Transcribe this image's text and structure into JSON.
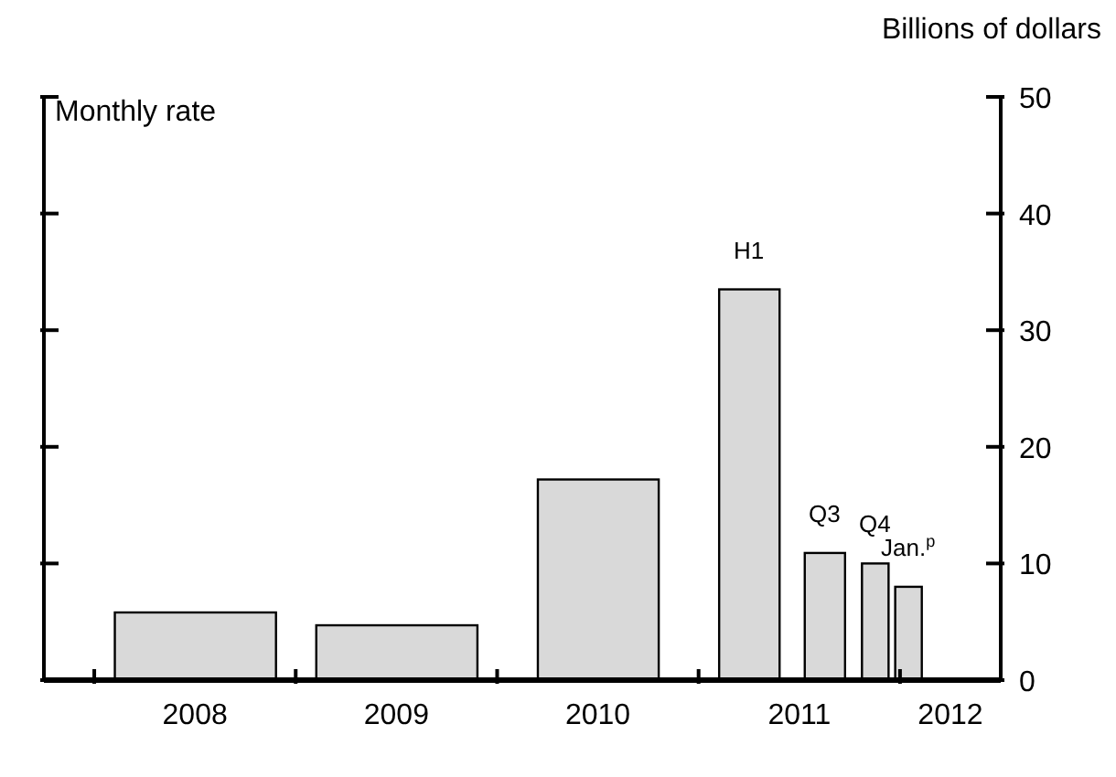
{
  "chart_data": {
    "type": "bar",
    "ylabel": "Billions of dollars",
    "x": [
      2008.5,
      2009.5,
      2010.5,
      2011.25,
      2011.625,
      2011.875,
      2012.04
    ],
    "values": [
      5.8,
      4.7,
      17.2,
      33.5,
      10.9,
      10,
      8
    ],
    "color": "#d9d9d9",
    "xlim": [
      2007.75,
      2012.5
    ],
    "xticks": [
      {
        "value": 2008,
        "label": null
      },
      {
        "value": 2008.5,
        "label": "2008"
      },
      {
        "value": 2009,
        "label": null
      },
      {
        "value": 2009.5,
        "label": "2009"
      },
      {
        "value": 2010,
        "label": null
      },
      {
        "value": 2010.5,
        "label": "2010"
      },
      {
        "value": 2011,
        "label": null
      },
      {
        "value": 2011.5,
        "label": "2011"
      },
      {
        "value": 2012,
        "label": null
      },
      {
        "value": 2012.25,
        "label": "2012"
      }
    ],
    "ylim": [
      0,
      50
    ],
    "yticks": [
      0,
      10,
      20,
      30,
      40,
      50
    ],
    "grid": false,
    "legend": false,
    "annotations": [
      "Monthly rate",
      {
        "text": "H1",
        "x": 2011.25,
        "y": 33.5
      },
      {
        "text": "Q3",
        "x": 2011.625,
        "y": 10.9
      },
      {
        "text": "Q4",
        "x": 2011.875,
        "y": 10
      },
      {
        "text": "Jan.$^{p}$",
        "x": 2012.04,
        "y": 8
      }
    ]
  }
}
